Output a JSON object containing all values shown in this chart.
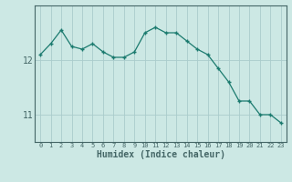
{
  "x": [
    0,
    1,
    2,
    3,
    4,
    5,
    6,
    7,
    8,
    9,
    10,
    11,
    12,
    13,
    14,
    15,
    16,
    17,
    18,
    19,
    20,
    21,
    22,
    23
  ],
  "y": [
    12.1,
    12.3,
    12.55,
    12.25,
    12.2,
    12.3,
    12.15,
    12.05,
    12.05,
    12.15,
    12.5,
    12.6,
    12.5,
    12.5,
    12.35,
    12.2,
    12.1,
    11.85,
    11.6,
    11.25,
    11.25,
    11.0,
    11.0,
    10.85
  ],
  "line_color": "#1a7a6e",
  "marker": "+",
  "bg_color": "#cce8e4",
  "grid_color": "#aacccc",
  "axis_color": "#446666",
  "xlabel": "Humidex (Indice chaleur)",
  "ytick_labels": [
    "11",
    "12"
  ],
  "ytick_vals": [
    11,
    12
  ],
  "ylim": [
    10.5,
    13.0
  ],
  "xlim": [
    -0.5,
    23.5
  ],
  "xlabel_fontsize": 7,
  "ytick_fontsize": 7,
  "xtick_fontsize": 5
}
